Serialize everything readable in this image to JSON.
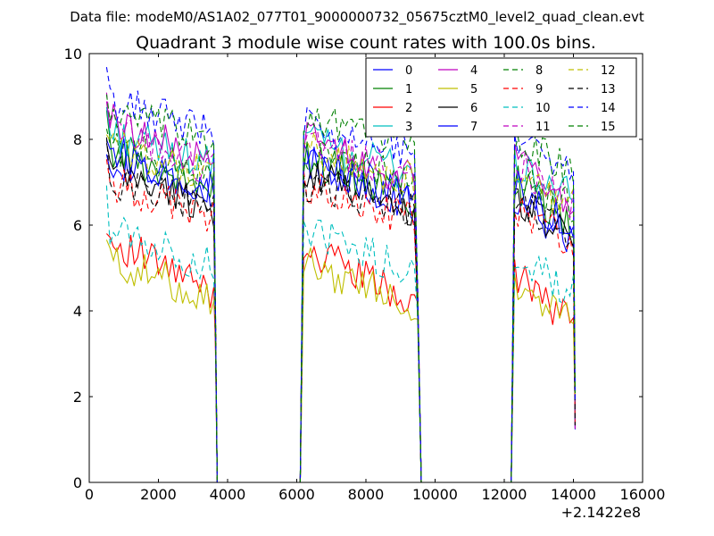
{
  "chart_data": {
    "type": "line",
    "suptitle": "Data file: modeM0/AS1A02_077T01_9000000732_05675cztM0_level2_quad_clean.evt",
    "title": "Quadrant 3 module wise count rates with 100.0s bins.",
    "xlabel": "",
    "ylabel": "",
    "offset_text": "+2.1422e8",
    "xlim": [
      0,
      16000
    ],
    "ylim": [
      0,
      10
    ],
    "xticks": [
      0,
      2000,
      4000,
      6000,
      8000,
      10000,
      12000,
      14000,
      16000
    ],
    "yticks": [
      0,
      2,
      4,
      6,
      8,
      10
    ],
    "xtick_labels": [
      "0",
      "2000",
      "4000",
      "6000",
      "8000",
      "10000",
      "12000",
      "14000",
      "16000"
    ],
    "ytick_labels": [
      "0",
      "2",
      "4",
      "6",
      "8",
      "10"
    ],
    "grid": false,
    "legend": {
      "placement": "top-right",
      "columns": 4
    },
    "segments": [
      {
        "x_start": 500,
        "x_end": 3600,
        "x_step": 100
      },
      {
        "x_start": 6200,
        "x_end": 9400,
        "x_step": 100
      },
      {
        "x_start": 12300,
        "x_end": 14000,
        "x_step": 100
      }
    ],
    "gaps": [
      {
        "x": [
          3700,
          6100
        ],
        "value": 0
      },
      {
        "x": [
          9600,
          12200
        ],
        "value": 0
      }
    ],
    "series": [
      {
        "name": "0",
        "color": "#0000ff",
        "dash": "solid",
        "levels": [
          7.6,
          7.5,
          6.6
        ],
        "decay": 1.0
      },
      {
        "name": "1",
        "color": "#008000",
        "dash": "solid",
        "levels": [
          7.8,
          7.6,
          7.0
        ],
        "decay": 1.0
      },
      {
        "name": "2",
        "color": "#ff0000",
        "dash": "solid",
        "levels": [
          5.7,
          5.5,
          4.9
        ],
        "decay": 1.3
      },
      {
        "name": "3",
        "color": "#00bfbf",
        "dash": "solid",
        "levels": [
          8.2,
          8.0,
          7.4
        ],
        "decay": 0.8
      },
      {
        "name": "4",
        "color": "#bf00bf",
        "dash": "solid",
        "levels": [
          8.5,
          8.1,
          7.6
        ],
        "decay": 1.1
      },
      {
        "name": "5",
        "color": "#bfbf00",
        "dash": "solid",
        "levels": [
          5.2,
          5.1,
          4.6
        ],
        "decay": 0.9
      },
      {
        "name": "6",
        "color": "#000000",
        "dash": "solid",
        "levels": [
          7.3,
          7.2,
          6.6
        ],
        "decay": 0.9
      },
      {
        "name": "7",
        "color": "#0000ff",
        "dash": "solid",
        "levels": [
          7.8,
          7.6,
          6.9
        ],
        "decay": 1.0
      },
      {
        "name": "8",
        "color": "#008000",
        "dash": "dashed",
        "levels": [
          7.9,
          7.7,
          7.1
        ],
        "decay": 0.7
      },
      {
        "name": "9",
        "color": "#ff0000",
        "dash": "dashed",
        "levels": [
          7.0,
          6.9,
          6.4
        ],
        "decay": 0.8
      },
      {
        "name": "10",
        "color": "#00bfbf",
        "dash": "dashed",
        "levels": [
          6.0,
          5.9,
          5.4
        ],
        "decay": 1.0
      },
      {
        "name": "11",
        "color": "#bf00bf",
        "dash": "dashed",
        "levels": [
          8.3,
          8.0,
          7.5
        ],
        "decay": 1.0
      },
      {
        "name": "12",
        "color": "#bfbf00",
        "dash": "dashed",
        "levels": [
          7.9,
          7.8,
          7.2
        ],
        "decay": 0.8
      },
      {
        "name": "13",
        "color": "#000000",
        "dash": "dashed",
        "levels": [
          7.1,
          7.0,
          6.5
        ],
        "decay": 0.7
      },
      {
        "name": "14",
        "color": "#0000ff",
        "dash": "dashed",
        "levels": [
          8.9,
          8.4,
          8.0
        ],
        "decay": 0.7
      },
      {
        "name": "15",
        "color": "#008000",
        "dash": "dashed",
        "levels": [
          8.6,
          8.6,
          7.9
        ],
        "decay": 0.6
      }
    ]
  }
}
